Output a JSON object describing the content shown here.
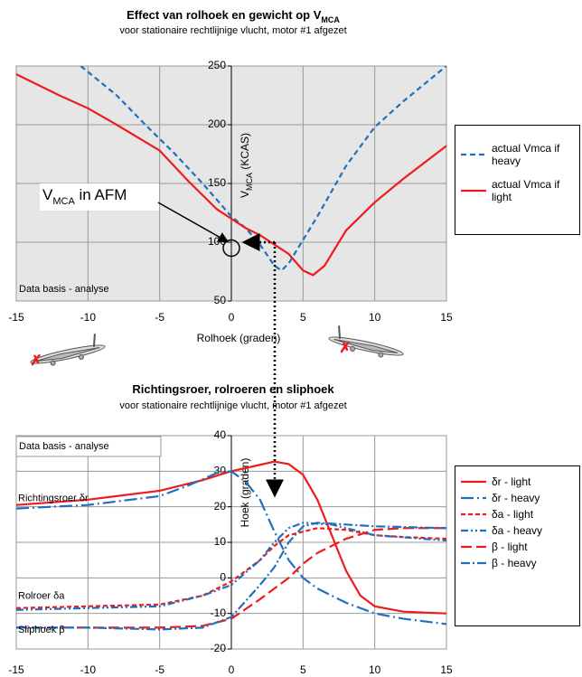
{
  "chart_data": [
    {
      "type": "line",
      "title": "Effect van rolhoek en gewicht op V",
      "title_sub": "MCA",
      "subtitle": "voor stationaire rechtlijnige vlucht, motor #1 afgezet",
      "xlabel": "Rolhoek (graden)",
      "ylabel": {
        "main": "V",
        "sub": "MCA",
        "rest": " (KCAS)"
      },
      "annotation": {
        "main": "V",
        "sub": "MCA",
        "rest": " in AFM"
      },
      "note": "Data basis - analyse",
      "xlim": [
        -15,
        15
      ],
      "xticks": [
        -15,
        -10,
        -5,
        0,
        5,
        10,
        15
      ],
      "ylim": [
        50,
        250
      ],
      "yticks": [
        50,
        100,
        150,
        200,
        250
      ],
      "grid": true,
      "series": [
        {
          "name": "actual Vmca if heavy",
          "color": "#1f6fc0",
          "dash": "6,4",
          "x": [
            -10.5,
            -8,
            -6,
            -4,
            -2,
            0,
            1,
            2,
            3,
            3.5,
            4,
            5,
            6,
            8,
            10,
            12,
            15
          ],
          "values": [
            250,
            225,
            200,
            176,
            150,
            122,
            112,
            98,
            80,
            76,
            82,
            102,
            122,
            165,
            198,
            220,
            250
          ]
        },
        {
          "name": "actual Vmca if light",
          "color": "#ee1c1c",
          "dash": "",
          "x": [
            -15,
            -12,
            -10,
            -8,
            -5,
            -3,
            -1,
            0,
            1,
            2,
            3,
            4,
            5,
            5.7,
            6.5,
            8,
            10,
            12,
            15
          ],
          "values": [
            243,
            225,
            214,
            200,
            178,
            152,
            128,
            120,
            112,
            106,
            98,
            90,
            76,
            72,
            80,
            110,
            134,
            154,
            182
          ]
        }
      ]
    },
    {
      "type": "line",
      "title": "Richtingsroer, rolroeren en sliphoek",
      "subtitle": "voor stationaire rechtlijnige vlucht, motor #1 afgezet",
      "ylabel": "Hoek (graden)",
      "note": "Data basis - analyse",
      "labels": [
        "Richtingsroer δr",
        "Rolroer  δa",
        "Sliphoek β"
      ],
      "xlim": [
        -15,
        15
      ],
      "xticks": [
        -15,
        -10,
        -5,
        0,
        5,
        10,
        15
      ],
      "ylim": [
        -20,
        40
      ],
      "yticks": [
        -20,
        -10,
        0,
        10,
        20,
        30,
        40
      ],
      "grid": true,
      "series": [
        {
          "name": "δr - light",
          "color": "#ee1c1c",
          "dash": "",
          "x": [
            -15,
            -10,
            -5,
            -2,
            0,
            2,
            3,
            4,
            5,
            6,
            7,
            8,
            9,
            10,
            12,
            15
          ],
          "values": [
            20.5,
            22,
            24.5,
            27.5,
            30,
            31.8,
            32.7,
            32,
            29,
            22,
            12,
            2,
            -5,
            -8,
            -9.5,
            -10
          ]
        },
        {
          "name": "δr - heavy",
          "color": "#1f6fc0",
          "dash": "14,4,2,4",
          "x": [
            -15,
            -10,
            -5,
            -3,
            -1,
            0,
            1,
            2,
            3,
            4,
            5,
            6,
            8,
            10,
            12,
            15
          ],
          "values": [
            19.5,
            20.5,
            23,
            26,
            29.5,
            30,
            27,
            22,
            13,
            5,
            0,
            -3,
            -7,
            -10,
            -11.5,
            -13
          ]
        },
        {
          "name": "δa - light",
          "color": "#ee1c1c",
          "dash": "5,3",
          "x": [
            -15,
            -10,
            -5,
            -2,
            0,
            2,
            3,
            4,
            6,
            8,
            10,
            12,
            15
          ],
          "values": [
            -8.5,
            -8,
            -7.5,
            -5,
            -1,
            5,
            9,
            12,
            14,
            13.5,
            12,
            11.5,
            11
          ]
        },
        {
          "name": "δa - heavy",
          "color": "#1f6fc0",
          "dash": "8,3,2,3,2,3",
          "x": [
            -15,
            -10,
            -5,
            -2,
            0,
            2,
            3,
            4,
            5,
            7,
            10,
            15
          ],
          "values": [
            -9,
            -8.5,
            -8,
            -5,
            -2,
            5,
            10,
            14,
            15.5,
            15,
            12,
            10.5
          ]
        },
        {
          "name": "β - light",
          "color": "#ee1c1c",
          "dash": "12,5",
          "x": [
            -15,
            -10,
            -5,
            -2,
            0,
            2,
            3,
            4,
            5,
            6,
            8,
            10,
            12,
            15
          ],
          "values": [
            -14,
            -14,
            -14,
            -13.5,
            -11.5,
            -6,
            -3,
            0,
            4,
            7,
            11,
            13.5,
            14,
            14
          ]
        },
        {
          "name": "β - heavy",
          "color": "#1f6fc0",
          "dash": "10,3,2,3",
          "x": [
            -15,
            -10,
            -5,
            -2,
            0,
            2,
            3,
            4,
            5,
            6,
            8,
            10,
            15
          ],
          "values": [
            -14,
            -14,
            -14.5,
            -14,
            -11,
            -2,
            3,
            10,
            14.5,
            15.5,
            15,
            14.5,
            14
          ]
        }
      ]
    }
  ]
}
